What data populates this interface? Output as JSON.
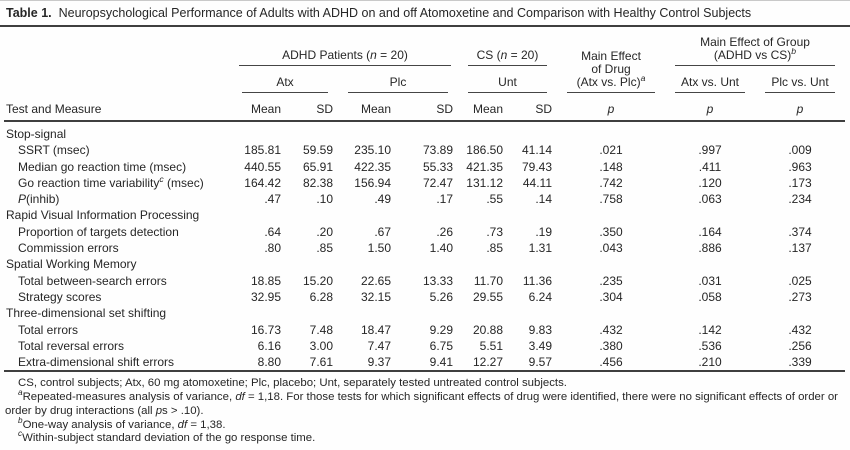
{
  "title": {
    "label": "Table 1.",
    "text": "Neuropsychological Performance of Adults with ADHD on and off Atomoxetine and Comparison with Healthy Control Subjects"
  },
  "header": {
    "test_measure": "Test and Measure",
    "adhd_group": "ADHD Patients (*n* = 20)",
    "cs_group": "CS (*n* = 20)",
    "drug_effect_l1": "Main Effect",
    "drug_effect_l2": "of Drug",
    "drug_effect_contrast": "(Atx vs. Plc)^a^",
    "group_effect_l1": "Main Effect of Group",
    "group_effect_l2": "(ADHD vs CS)^b^",
    "atx": "Atx",
    "plc": "Plc",
    "unt": "Unt",
    "atx_vs_unt": "Atx vs. Unt",
    "plc_vs_unt": "Plc vs. Unt",
    "mean": "Mean",
    "sd": "SD",
    "p": "*p*"
  },
  "sections": [
    {
      "name": "Stop-signal",
      "rows": [
        {
          "label": "SSRT (msec)",
          "values": [
            "185.81",
            "59.59",
            "235.10",
            "73.89",
            "186.50",
            "41.14",
            ".021",
            ".997",
            ".009"
          ]
        },
        {
          "label": "Median go reaction time (msec)",
          "values": [
            "440.55",
            "65.91",
            "422.35",
            "55.33",
            "421.35",
            "79.43",
            ".148",
            ".411",
            ".963"
          ]
        },
        {
          "label": "Go reaction time variability^c^ (msec)",
          "values": [
            "164.42",
            "82.38",
            "156.94",
            "72.47",
            "131.12",
            "44.11",
            ".742",
            ".120",
            ".173"
          ]
        },
        {
          "label": "*P*(inhib)",
          "values": [
            ".47",
            ".10",
            ".49",
            ".17",
            ".55",
            ".14",
            ".758",
            ".063",
            ".234"
          ]
        }
      ]
    },
    {
      "name": "Rapid Visual Information Processing",
      "rows": [
        {
          "label": "Proportion of targets detection",
          "values": [
            ".64",
            ".20",
            ".67",
            ".26",
            ".73",
            ".19",
            ".350",
            ".164",
            ".374"
          ]
        },
        {
          "label": "Commission errors",
          "values": [
            ".80",
            ".85",
            "1.50",
            "1.40",
            ".85",
            "1.31",
            ".043",
            ".886",
            ".137"
          ]
        }
      ]
    },
    {
      "name": "Spatial Working Memory",
      "rows": [
        {
          "label": "Total between-search errors",
          "values": [
            "18.85",
            "15.20",
            "22.65",
            "13.33",
            "11.70",
            "11.36",
            ".235",
            ".031",
            ".025"
          ]
        },
        {
          "label": "Strategy scores",
          "values": [
            "32.95",
            "6.28",
            "32.15",
            "5.26",
            "29.55",
            "6.24",
            ".304",
            ".058",
            ".273"
          ]
        }
      ]
    },
    {
      "name": "Three-dimensional set shifting",
      "rows": [
        {
          "label": "Total errors",
          "values": [
            "16.73",
            "7.48",
            "18.47",
            "9.29",
            "20.88",
            "9.83",
            ".432",
            ".142",
            ".432"
          ]
        },
        {
          "label": "Total reversal errors",
          "values": [
            "6.16",
            "3.00",
            "7.47",
            "6.75",
            "5.51",
            "3.49",
            ".380",
            ".536",
            ".256"
          ]
        },
        {
          "label": "Extra-dimensional shift errors",
          "values": [
            "8.80",
            "7.61",
            "9.37",
            "9.41",
            "12.27",
            "9.57",
            ".456",
            ".210",
            ".339"
          ]
        }
      ]
    }
  ],
  "footnotes": [
    "CS, control subjects; Atx, 60 mg atomoxetine; Plc, placebo; Unt, separately tested untreated control subjects.",
    "^a^Repeated-measures analysis of variance, *df* = 1,18. For those tests for which significant effects of drug were identified, there were no significant effects of order or order by drug interactions (all *p*s > .10).",
    "^b^One-way analysis of variance, *df* = 1,38.",
    "^c^Within-subject standard deviation of the go response time."
  ]
}
